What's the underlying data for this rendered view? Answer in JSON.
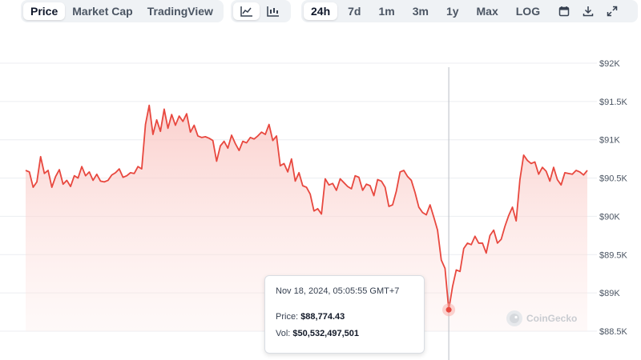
{
  "toolbar": {
    "view_tabs": [
      {
        "label": "Price",
        "active": true
      },
      {
        "label": "Market Cap",
        "active": false
      },
      {
        "label": "TradingView",
        "active": false
      }
    ],
    "chart_type_icons": [
      "line-chart-icon",
      "candlestick-chart-icon"
    ],
    "range_tabs": [
      {
        "label": "24h",
        "active": true
      },
      {
        "label": "7d",
        "active": false
      },
      {
        "label": "1m",
        "active": false
      },
      {
        "label": "3m",
        "active": false
      },
      {
        "label": "1y",
        "active": false
      },
      {
        "label": "Max",
        "active": false
      },
      {
        "label": "LOG",
        "active": false
      }
    ],
    "action_icons": [
      "calendar-icon",
      "download-icon",
      "expand-icon"
    ]
  },
  "tooltip": {
    "date": "Nov 18, 2024, 05:05:55 GMT+7",
    "price_label": "Price:",
    "price_value": "$88,774.43",
    "vol_label": "Vol:",
    "vol_value": "$50,532,497,501"
  },
  "watermark": {
    "text": "CoinGecko"
  },
  "colors": {
    "line": "#e8483f",
    "fill_top": "#f9c0bc",
    "grid": "#eceef1",
    "accent_bg": "#eff2f5"
  },
  "chart_data": {
    "type": "area",
    "y_axis": {
      "min": 88500,
      "max": 92000,
      "ticks": [
        92000,
        91500,
        91000,
        90500,
        90000,
        89500,
        89000,
        88500
      ],
      "tick_labels": [
        "$92K",
        "$91.5K",
        "$91K",
        "$90.5K",
        "$90K",
        "$89.5K",
        "$89K",
        "$88.5K"
      ],
      "position": "right"
    },
    "grid": true,
    "hover_index": 113,
    "x": [
      0,
      1,
      2,
      3,
      4,
      5,
      6,
      7,
      8,
      9,
      10,
      11,
      12,
      13,
      14,
      15,
      16,
      17,
      18,
      19,
      20,
      21,
      22,
      23,
      24,
      25,
      26,
      27,
      28,
      29,
      30,
      31,
      32,
      33,
      34,
      35,
      36,
      37,
      38,
      39,
      40,
      41,
      42,
      43,
      44,
      45,
      46,
      47,
      48,
      49,
      50,
      51,
      52,
      53,
      54,
      55,
      56,
      57,
      58,
      59,
      60,
      61,
      62,
      63,
      64,
      65,
      66,
      67,
      68,
      69,
      70,
      71,
      72,
      73,
      74,
      75,
      76,
      77,
      78,
      79,
      80,
      81,
      82,
      83,
      84,
      85,
      86,
      87,
      88,
      89,
      90,
      91,
      92,
      93,
      94,
      95,
      96,
      97,
      98,
      99,
      100,
      101,
      102,
      103,
      104,
      105,
      106,
      107,
      108,
      109,
      110,
      111,
      112,
      113,
      114,
      115,
      116,
      117,
      118,
      119,
      120,
      121,
      122,
      123,
      124,
      125,
      126,
      127,
      128,
      129,
      130,
      131,
      132,
      133,
      134,
      135,
      136,
      137,
      138,
      139,
      140,
      141,
      142,
      143,
      144,
      145,
      146,
      147,
      148,
      149,
      150
    ],
    "price": [
      90600,
      90580,
      90380,
      90450,
      90780,
      90560,
      90600,
      90380,
      90520,
      90610,
      90420,
      90470,
      90390,
      90530,
      90500,
      90650,
      90530,
      90580,
      90470,
      90550,
      90460,
      90450,
      90470,
      90540,
      90570,
      90620,
      90510,
      90530,
      90570,
      90560,
      90650,
      90620,
      91200,
      91450,
      91070,
      91260,
      91110,
      91400,
      91150,
      91330,
      91190,
      91310,
      91240,
      91340,
      91100,
      91190,
      91050,
      91030,
      91040,
      91020,
      90990,
      90720,
      90920,
      90980,
      90890,
      91060,
      90950,
      90860,
      90980,
      90960,
      91030,
      91010,
      91050,
      91100,
      91070,
      91200,
      90990,
      91050,
      90660,
      90690,
      90580,
      90750,
      90460,
      90570,
      90400,
      90380,
      90290,
      90070,
      90100,
      90030,
      90490,
      90410,
      90430,
      90340,
      90490,
      90440,
      90390,
      90360,
      90530,
      90510,
      90340,
      90420,
      90400,
      90270,
      90480,
      90460,
      90380,
      90130,
      90150,
      90330,
      90580,
      90600,
      90520,
      90470,
      90310,
      90120,
      90050,
      90020,
      90150,
      89990,
      89820,
      89430,
      89320,
      88780,
      89080,
      89300,
      89280,
      89580,
      89650,
      89630,
      89740,
      89650,
      89650,
      89520,
      89750,
      89820,
      89650,
      89700,
      89870,
      90010,
      90120,
      89940,
      90480,
      90800,
      90730,
      90690,
      90710,
      90550,
      90640,
      90590,
      90460,
      90640,
      90480,
      90410,
      90570,
      90560,
      90550,
      90600,
      90580,
      90540,
      90600
    ]
  }
}
